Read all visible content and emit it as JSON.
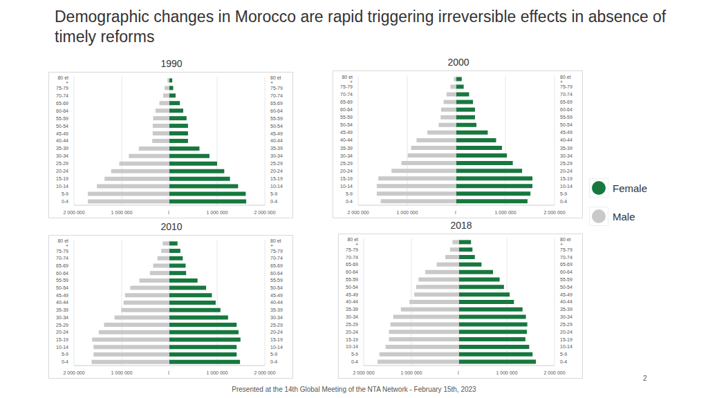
{
  "title": "Demographic changes in Morocco are rapid triggering irreversible effects in absence of timely reforms",
  "footer": "Presented at the 14th Global Meeting of the NTA Network - February 15th, 2023",
  "page_number": "2",
  "chart_data": [
    {
      "type": "bar",
      "title": "1990",
      "orientation": "horizontal",
      "grid": true,
      "legend": "right",
      "categories": [
        "80 et +",
        "75-79",
        "70-74",
        "65-69",
        "60-64",
        "55-59",
        "50-54",
        "45-49",
        "40-44",
        "35-39",
        "30-34",
        "25-29",
        "20-24",
        "15-19",
        "10-14",
        "5-9",
        "0-4"
      ],
      "xlim": [
        0,
        2000000
      ],
      "xticks": [
        0,
        {
          "value": 1000000,
          "label": "1 000 000"
        },
        {
          "value": 2000000,
          "label": "2 000 000"
        }
      ],
      "series": [
        {
          "name": "Female",
          "color": "#17783f",
          "values": [
            60000,
            80000,
            130000,
            220000,
            290000,
            360000,
            390000,
            390000,
            390000,
            630000,
            840000,
            1000000,
            1150000,
            1270000,
            1440000,
            1600000,
            1610000
          ]
        },
        {
          "name": "Male",
          "color": "#c9c9c9",
          "values": [
            40000,
            100000,
            130000,
            210000,
            290000,
            340000,
            350000,
            350000,
            360000,
            640000,
            850000,
            1050000,
            1220000,
            1360000,
            1520000,
            1710000,
            1710000
          ]
        }
      ]
    },
    {
      "type": "bar",
      "title": "2000",
      "orientation": "horizontal",
      "grid": true,
      "legend": "right",
      "categories": [
        "80 et +",
        "75-79",
        "70-74",
        "65-69",
        "60-64",
        "55-59",
        "50-54",
        "45-49",
        "40-44",
        "35-39",
        "30-34",
        "25-29",
        "20-24",
        "15-19",
        "10-14",
        "5-9",
        "0-4"
      ],
      "xlim": [
        0,
        2000000
      ],
      "xticks": [
        0,
        {
          "value": 1000000,
          "label": "1 000 000"
        },
        {
          "value": 2000000,
          "label": "2 000 000"
        }
      ],
      "series": [
        {
          "name": "Female",
          "color": "#17783f",
          "values": [
            110000,
            150000,
            260000,
            340000,
            380000,
            380000,
            410000,
            640000,
            810000,
            930000,
            1030000,
            1150000,
            1340000,
            1550000,
            1550000,
            1510000,
            1450000
          ]
        },
        {
          "name": "Male",
          "color": "#c9c9c9",
          "values": [
            50000,
            120000,
            200000,
            260000,
            310000,
            320000,
            360000,
            590000,
            810000,
            920000,
            990000,
            1120000,
            1320000,
            1590000,
            1620000,
            1620000,
            1540000
          ]
        }
      ]
    },
    {
      "type": "bar",
      "title": "2010",
      "orientation": "horizontal",
      "grid": true,
      "legend": "right",
      "categories": [
        "80 et +",
        "75-79",
        "70-74",
        "65-69",
        "60-64",
        "55-59",
        "50-54",
        "45-49",
        "40-44",
        "35-39",
        "30-34",
        "25-29",
        "20-24",
        "15-19",
        "10-14",
        "5-9",
        "0-4"
      ],
      "xlim": [
        0,
        2000000
      ],
      "xticks": [
        0,
        {
          "value": 1000000,
          "label": "1 000 000"
        },
        {
          "value": 2000000,
          "label": "2 000 000"
        }
      ],
      "series": [
        {
          "name": "Female",
          "color": "#17783f",
          "values": [
            170000,
            230000,
            280000,
            340000,
            350000,
            590000,
            770000,
            890000,
            970000,
            1070000,
            1230000,
            1410000,
            1450000,
            1490000,
            1410000,
            1410000,
            1480000
          ]
        },
        {
          "name": "Male",
          "color": "#c9c9c9",
          "values": [
            140000,
            170000,
            250000,
            340000,
            410000,
            630000,
            820000,
            930000,
            960000,
            1010000,
            1150000,
            1370000,
            1480000,
            1620000,
            1590000,
            1590000,
            1630000
          ]
        }
      ]
    },
    {
      "type": "bar",
      "title": "2018",
      "orientation": "horizontal",
      "grid": true,
      "legend": "right",
      "categories": [
        "80 et +",
        "75-79",
        "70-74",
        "65-69",
        "60-64",
        "55-59",
        "50-54",
        "45-49",
        "40-44",
        "35-39",
        "30-34",
        "25-29",
        "20-24",
        "15-19",
        "10-14",
        "5-9",
        "0-4"
      ],
      "xlim": [
        0,
        2000000
      ],
      "xticks": [
        0,
        {
          "value": 1000000,
          "label": "1 000 000"
        },
        {
          "value": 2000000,
          "label": "2 000 000"
        }
      ],
      "series": [
        {
          "name": "Female",
          "color": "#17783f",
          "values": [
            250000,
            280000,
            330000,
            470000,
            710000,
            850000,
            940000,
            1060000,
            1150000,
            1330000,
            1400000,
            1430000,
            1420000,
            1390000,
            1470000,
            1540000,
            1610000
          ]
        },
        {
          "name": "Male",
          "color": "#c9c9c9",
          "values": [
            140000,
            190000,
            290000,
            470000,
            710000,
            850000,
            900000,
            940000,
            1040000,
            1220000,
            1380000,
            1440000,
            1470000,
            1470000,
            1540000,
            1670000,
            1710000
          ]
        }
      ]
    }
  ]
}
